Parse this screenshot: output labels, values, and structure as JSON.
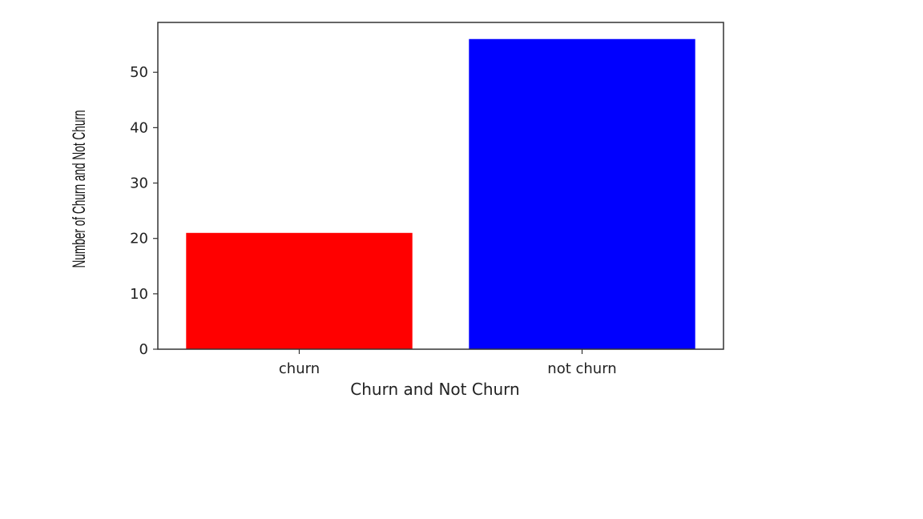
{
  "chart_data": {
    "type": "bar",
    "categories": [
      "churn",
      "not churn"
    ],
    "values": [
      21,
      56
    ],
    "colors": [
      "#ff0000",
      "#0000ff"
    ],
    "xlabel": "Churn and Not Churn",
    "ylabel": "Number of Churn and Not Churn",
    "ylim": [
      0,
      59
    ],
    "yticks": [
      0,
      10,
      20,
      30,
      40,
      50
    ],
    "grid": false
  }
}
